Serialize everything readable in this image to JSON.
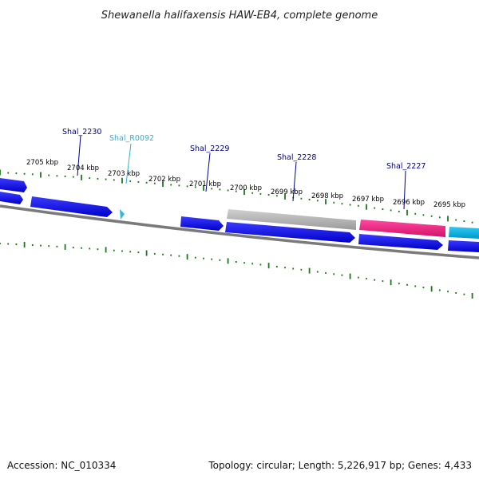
{
  "title": "Shewanella halifaxensis HAW-EB4, complete genome",
  "footer": {
    "accession": "Accession: NC_010334",
    "summary": "Topology: circular; Length: 5,226,917 bp; Genes: 4,433"
  },
  "scale_labels": [
    "2705 kbp",
    "2704 kbp",
    "2703 kbp",
    "2702 kbp",
    "2701 kbp",
    "2700 kbp",
    "2699 kbp",
    "2698 kbp",
    "2697 kbp",
    "2696 kbp",
    "2695 kbp"
  ],
  "gene_labels": [
    {
      "text": "Shal_2230",
      "color": "#00008b"
    },
    {
      "text": "Shal_R0092",
      "color": "#2ab0d8"
    },
    {
      "text": "Shal_2229",
      "color": "#00008b"
    },
    {
      "text": "Shal_2228",
      "color": "#00008b"
    },
    {
      "text": "Shal_2227",
      "color": "#00008b"
    }
  ],
  "colors": {
    "cds": "#0000e6",
    "rna": "#33b5e8",
    "pseudo": "#b8b8b8",
    "other": "#e8197e",
    "cyan_feature": "#00b0e0",
    "backbone": "#777777",
    "ticks": "#1a7a1a"
  }
}
